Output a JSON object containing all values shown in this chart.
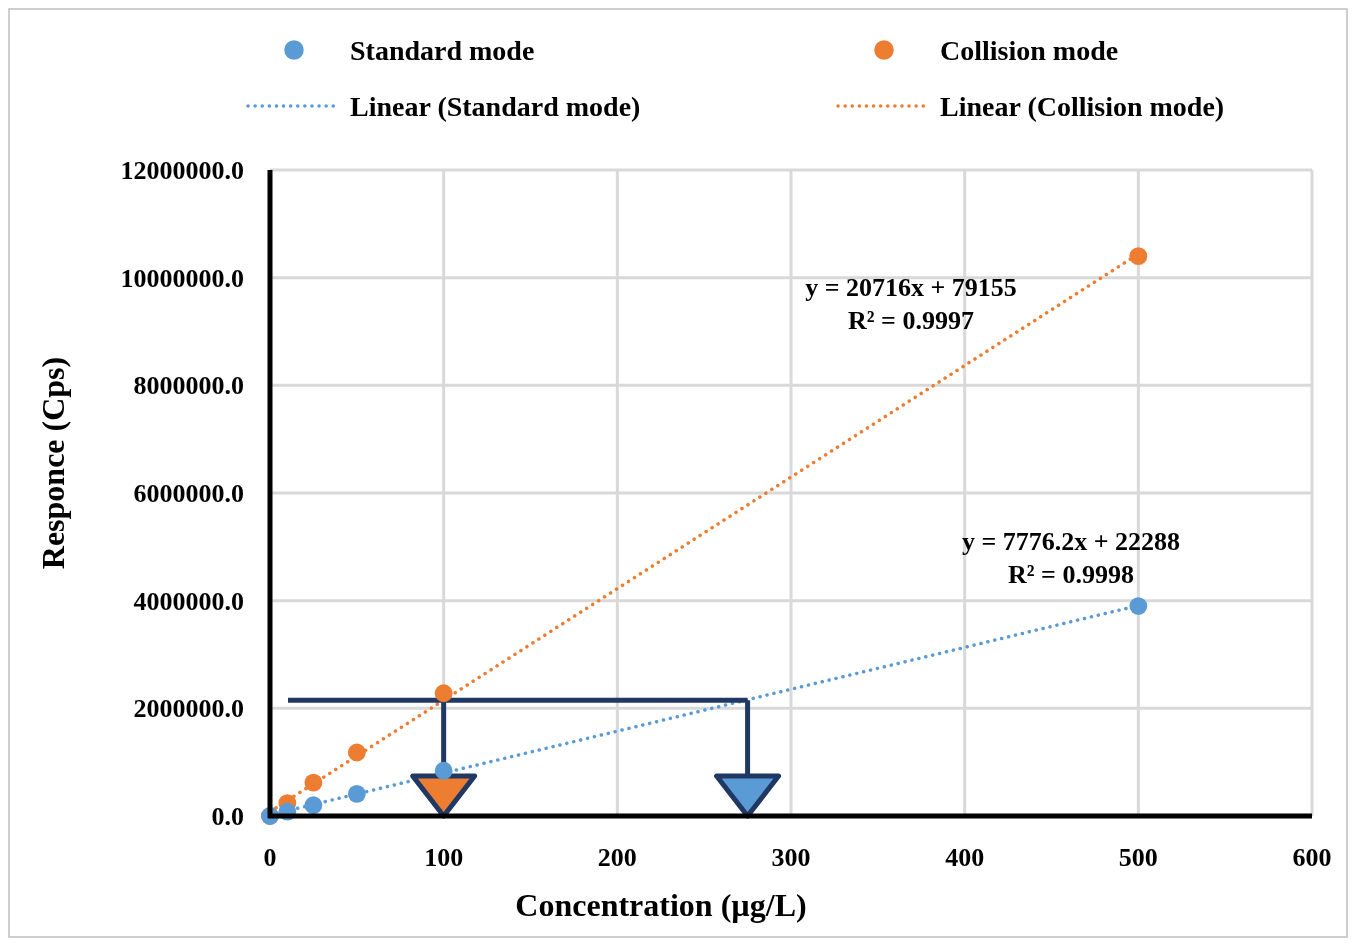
{
  "chart_data": {
    "type": "scatter",
    "xlabel": "Concentration (µg/L)",
    "ylabel": "Responce (Cps)",
    "xlim": [
      0,
      600
    ],
    "xticks": [
      0,
      100,
      200,
      300,
      400,
      500,
      600
    ],
    "ylim": [
      0,
      12000000
    ],
    "yticks": [
      {
        "value": 0,
        "label": "0.0"
      },
      {
        "value": 2000000,
        "label": "2000000.0"
      },
      {
        "value": 4000000,
        "label": "4000000.0"
      },
      {
        "value": 6000000,
        "label": "6000000.0"
      },
      {
        "value": 8000000,
        "label": "8000000.0"
      },
      {
        "value": 10000000,
        "label": "10000000.0"
      },
      {
        "value": 12000000,
        "label": "12000000.0"
      }
    ],
    "grid": true,
    "legend": "top",
    "marker": "circle",
    "series": [
      {
        "name": "Standard mode",
        "color": "#5b9bd5",
        "x": [
          0,
          10,
          25,
          50,
          100,
          500
        ],
        "values": [
          0,
          80000,
          200000,
          410000,
          840000,
          3900000
        ]
      },
      {
        "name": "Collision mode",
        "color": "#ed7d31",
        "x": [
          0,
          10,
          25,
          50,
          100,
          500
        ],
        "values": [
          0,
          240000,
          620000,
          1180000,
          2280000,
          10400000
        ]
      },
      {
        "name": "Linear (Standard mode)",
        "type": "line",
        "line_style": "dotted",
        "marker": "none",
        "color": "#5b9bd5",
        "x": [
          0,
          500
        ],
        "values": [
          20000,
          3910000
        ]
      },
      {
        "name": "Linear (Collision mode)",
        "type": "line",
        "line_style": "dotted",
        "marker": "none",
        "color": "#ed7d31",
        "x": [
          0,
          500
        ],
        "values": [
          80000,
          10440000
        ]
      }
    ],
    "ref_lines": [
      {
        "axis": "y",
        "value": 2150000,
        "color": "#203864"
      },
      {
        "axis": "x",
        "value": 100,
        "color": "#203864"
      },
      {
        "axis": "x",
        "value": 275,
        "color": "#203864"
      }
    ],
    "annotations": [
      "y = 20716x + 79155",
      "R² = 0.9997",
      "y = 7776.2x + 22288",
      "R² = 0.9998"
    ]
  }
}
